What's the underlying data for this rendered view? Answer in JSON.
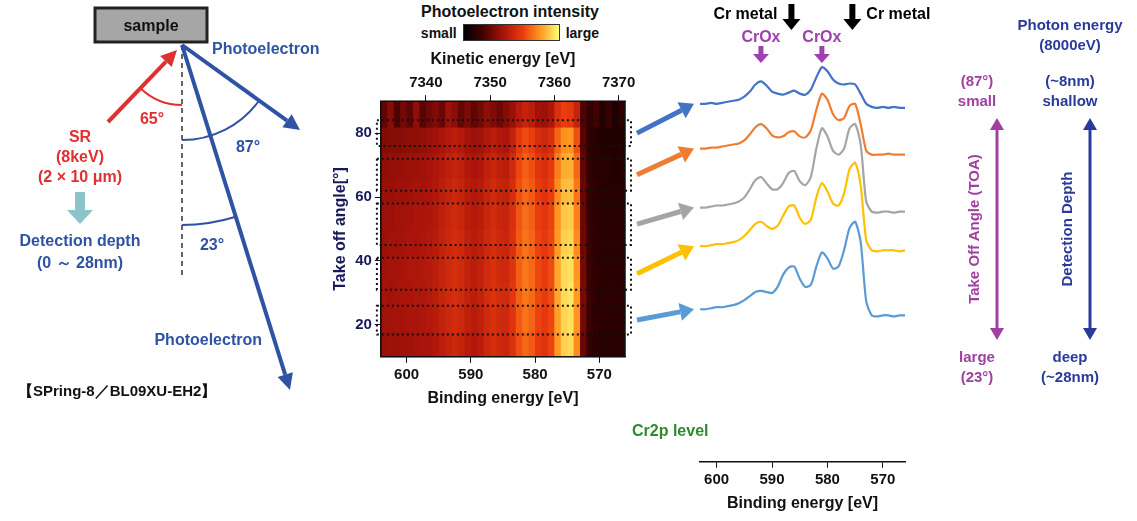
{
  "diagram": {
    "sample": "sample",
    "beam": [
      "SR",
      "(8keV)",
      "(2 × 10 μm)"
    ],
    "incidence_angle": "65°",
    "photoelectron": "Photoelectron",
    "emission_angles": [
      "87°",
      "23°"
    ],
    "detection_depth": [
      "Detection depth",
      "(0 ～ 28nm)"
    ],
    "facility": "【SPring-8／BL09XU-EH2】"
  },
  "chart_data": [
    {
      "type": "heatmap",
      "colorbar_title": "Photoelectron intensity",
      "colorbar_labels": [
        "small",
        "large"
      ],
      "color_range": [
        0,
        10
      ],
      "x_label": "Binding energy [eV]",
      "xlim": [
        604,
        566
      ],
      "xticks": [
        600,
        590,
        580,
        570
      ],
      "x2_label": "Kinetic energy [eV]",
      "x2lim": [
        7333,
        7371
      ],
      "x2ticks": [
        7340,
        7350,
        7360,
        7370
      ],
      "y_label": "Take off angle[°]",
      "ylim": [
        10,
        90
      ],
      "yticks": [
        20,
        40,
        60,
        80
      ],
      "grid": false,
      "x_edges": [
        604,
        603,
        602,
        601,
        600,
        599,
        598,
        597,
        596,
        595,
        594,
        593,
        592,
        591,
        590,
        589,
        588,
        587,
        586,
        585,
        584,
        583,
        582,
        581,
        580,
        579,
        578,
        577,
        576,
        575,
        574,
        573,
        572,
        571,
        570,
        569,
        568,
        567,
        566
      ],
      "y_edges": [
        10,
        18,
        26,
        34,
        42,
        50,
        58,
        66,
        74,
        82,
        90
      ],
      "cells": [
        [
          3.8,
          3.9,
          3.9,
          4.0,
          4.0,
          4.1,
          4.2,
          4.2,
          4.4,
          4.7,
          5.0,
          5.2,
          5.0,
          4.6,
          4.4,
          4.7,
          5.2,
          5.5,
          5.2,
          5.1,
          5.7,
          6.6,
          7.1,
          6.8,
          6.1,
          5.8,
          6.3,
          8.1,
          9.1,
          9.3,
          7.8,
          2.8,
          1.5,
          1.2,
          1.1,
          1.1,
          1.1,
          1.1
        ],
        [
          4.0,
          4.0,
          4.1,
          4.1,
          4.2,
          4.2,
          4.3,
          4.4,
          4.6,
          4.9,
          5.2,
          5.4,
          5.2,
          4.8,
          4.6,
          4.8,
          5.3,
          5.6,
          5.3,
          5.2,
          5.8,
          6.8,
          7.3,
          7.0,
          6.3,
          6.0,
          6.4,
          8.2,
          9.2,
          9.4,
          8.0,
          3.0,
          1.6,
          1.3,
          1.2,
          1.2,
          1.2,
          1.2
        ],
        [
          4.1,
          4.0,
          4.1,
          4.2,
          4.2,
          4.3,
          4.3,
          4.5,
          4.7,
          5.0,
          5.3,
          5.5,
          5.3,
          4.9,
          4.7,
          4.9,
          5.4,
          5.7,
          5.4,
          5.3,
          5.9,
          6.9,
          7.4,
          7.1,
          6.4,
          6.1,
          6.5,
          8.3,
          9.3,
          9.5,
          8.1,
          3.1,
          1.7,
          1.3,
          1.2,
          1.3,
          1.2,
          1.2
        ],
        [
          4.0,
          4.1,
          4.1,
          4.2,
          4.3,
          4.3,
          4.4,
          4.5,
          4.7,
          5.0,
          5.3,
          5.5,
          5.3,
          4.9,
          4.7,
          4.9,
          5.3,
          5.6,
          5.3,
          5.2,
          5.8,
          6.9,
          7.4,
          7.1,
          6.4,
          6.1,
          6.5,
          8.3,
          9.3,
          9.4,
          8.0,
          3.0,
          1.6,
          1.3,
          1.2,
          1.2,
          1.2,
          1.2
        ],
        [
          3.9,
          4.0,
          4.0,
          4.1,
          4.2,
          4.2,
          4.3,
          4.4,
          4.6,
          4.9,
          5.2,
          5.4,
          5.2,
          4.8,
          4.6,
          4.8,
          5.2,
          5.5,
          5.2,
          5.1,
          5.7,
          6.8,
          7.3,
          7.0,
          6.3,
          6.0,
          6.4,
          8.1,
          9.1,
          9.2,
          7.8,
          2.9,
          1.6,
          1.3,
          1.2,
          1.2,
          1.2,
          1.2
        ],
        [
          3.9,
          3.9,
          4.0,
          4.0,
          4.1,
          4.2,
          4.2,
          4.3,
          4.5,
          4.8,
          5.1,
          5.3,
          5.1,
          4.7,
          4.5,
          4.7,
          5.1,
          5.4,
          5.1,
          5.0,
          5.6,
          6.7,
          7.2,
          6.9,
          6.2,
          5.9,
          6.3,
          8.0,
          8.9,
          9.0,
          7.6,
          2.8,
          1.5,
          1.2,
          1.2,
          1.1,
          1.2,
          1.1
        ],
        [
          3.8,
          3.8,
          3.9,
          3.9,
          4.0,
          4.1,
          4.1,
          4.2,
          4.4,
          4.7,
          5.0,
          5.2,
          5.0,
          4.6,
          4.4,
          4.6,
          5.0,
          5.3,
          5.0,
          4.9,
          5.5,
          6.6,
          7.1,
          6.8,
          6.1,
          5.8,
          6.2,
          7.8,
          8.7,
          8.8,
          7.4,
          2.7,
          1.5,
          1.2,
          1.1,
          1.1,
          1.1,
          1.1
        ],
        [
          3.6,
          3.7,
          3.7,
          3.8,
          3.9,
          3.9,
          4.0,
          4.1,
          4.3,
          4.5,
          4.8,
          5.0,
          4.8,
          4.4,
          4.2,
          4.4,
          4.8,
          5.1,
          4.8,
          4.7,
          5.3,
          6.4,
          6.9,
          6.6,
          5.9,
          5.6,
          6.0,
          7.5,
          8.4,
          8.5,
          7.1,
          2.6,
          1.4,
          1.1,
          1.1,
          1.1,
          1.0,
          1.1
        ],
        [
          3.3,
          3.4,
          3.4,
          3.5,
          3.6,
          3.6,
          3.7,
          3.8,
          4.0,
          4.2,
          4.5,
          4.7,
          4.5,
          4.1,
          3.9,
          4.0,
          4.4,
          4.7,
          4.4,
          4.3,
          4.9,
          6.0,
          6.5,
          6.2,
          5.5,
          5.2,
          5.6,
          7.0,
          7.9,
          8.0,
          6.6,
          2.4,
          1.3,
          1.1,
          1.0,
          1.0,
          1.0,
          1.0
        ],
        [
          2.6,
          3.4,
          2.2,
          3.0,
          2.5,
          3.6,
          2.4,
          2.9,
          3.3,
          2.8,
          3.9,
          3.5,
          2.7,
          3.2,
          2.6,
          3.0,
          3.6,
          3.3,
          2.9,
          3.4,
          3.8,
          4.6,
          5.0,
          4.7,
          4.0,
          3.9,
          4.3,
          5.6,
          6.2,
          6.0,
          5.0,
          2.2,
          1.4,
          1.9,
          1.0,
          1.6,
          0.9,
          1.3
        ]
      ],
      "angle_windows": [
        [
          76,
          84
        ],
        [
          62,
          72
        ],
        [
          45,
          58
        ],
        [
          31,
          41
        ],
        [
          17,
          26
        ]
      ]
    },
    {
      "type": "line",
      "title": "Cr2p level",
      "x_label": "Binding energy [eV]",
      "xlim": [
        603,
        566
      ],
      "xticks": [
        600,
        590,
        580,
        570
      ],
      "ylim": [
        0,
        20
      ],
      "tick_labels": "x",
      "grid": false,
      "x": [
        603,
        602,
        601,
        600,
        599,
        598,
        597,
        596,
        595,
        594,
        593,
        592,
        591,
        590,
        589,
        588,
        587,
        586,
        585,
        584,
        583,
        582,
        581,
        580,
        579,
        578,
        577,
        576,
        575,
        574,
        573,
        572,
        571,
        570,
        569,
        568,
        567,
        566
      ],
      "series": [
        {
          "color": "#4472c4",
          "values": [
            17.6,
            17.6,
            17.65,
            17.6,
            17.65,
            17.7,
            17.75,
            17.8,
            17.95,
            18.2,
            18.55,
            18.7,
            18.5,
            18.2,
            18.1,
            18.05,
            18.15,
            18.25,
            18.1,
            18.05,
            18.3,
            18.9,
            19.4,
            19.2,
            18.8,
            18.6,
            18.55,
            18.6,
            18.55,
            18.1,
            17.6,
            17.45,
            17.4,
            17.45,
            17.4,
            17.45,
            17.4,
            17.4
          ]
        },
        {
          "color": "#ed7d31",
          "values": [
            15.4,
            15.4,
            15.45,
            15.45,
            15.5,
            15.55,
            15.6,
            15.65,
            15.8,
            16.1,
            16.45,
            16.6,
            16.4,
            16.05,
            15.95,
            16.0,
            16.2,
            16.25,
            16.0,
            15.95,
            16.3,
            17.3,
            18.1,
            17.8,
            17.1,
            16.8,
            16.9,
            17.5,
            17.6,
            16.6,
            15.3,
            15.1,
            15.1,
            15.1,
            15.15,
            15.1,
            15.1,
            15.1
          ]
        },
        {
          "color": "#a5a5a5",
          "values": [
            12.5,
            12.5,
            12.55,
            12.6,
            12.6,
            12.65,
            12.7,
            12.8,
            13.0,
            13.4,
            13.85,
            14.0,
            13.7,
            13.4,
            13.4,
            13.7,
            14.2,
            14.3,
            13.8,
            13.6,
            14.0,
            15.4,
            16.4,
            16.0,
            15.3,
            15.1,
            15.4,
            16.4,
            16.6,
            15.6,
            12.8,
            12.3,
            12.25,
            12.3,
            12.3,
            12.25,
            12.3,
            12.3
          ]
        },
        {
          "color": "#ffc000",
          "values": [
            10.6,
            10.6,
            10.65,
            10.7,
            10.7,
            10.75,
            10.8,
            10.9,
            11.1,
            11.4,
            11.7,
            11.8,
            11.6,
            11.45,
            11.6,
            12.1,
            12.55,
            12.6,
            12.0,
            11.7,
            11.9,
            13.0,
            13.7,
            13.3,
            12.7,
            12.6,
            13.2,
            14.4,
            14.7,
            13.6,
            10.9,
            10.4,
            10.35,
            10.4,
            10.4,
            10.4,
            10.35,
            10.4
          ]
        },
        {
          "color": "#5b9bd5",
          "values": [
            7.5,
            7.5,
            7.55,
            7.6,
            7.6,
            7.65,
            7.7,
            7.8,
            7.95,
            8.15,
            8.35,
            8.4,
            8.35,
            8.3,
            8.6,
            9.2,
            9.55,
            9.6,
            9.0,
            8.6,
            8.7,
            9.6,
            10.3,
            10.0,
            9.5,
            9.6,
            10.4,
            11.5,
            11.8,
            10.8,
            7.9,
            7.2,
            7.15,
            7.2,
            7.2,
            7.15,
            7.2,
            7.2
          ]
        }
      ],
      "annotations": [
        {
          "text": "Cr metal",
          "x": [
            586.5,
            575.5
          ],
          "color": "#000000"
        },
        {
          "text": "CrOx",
          "x": [
            592,
            581
          ],
          "color": "#a040b0"
        }
      ]
    }
  ],
  "depth_scale": {
    "photon_energy": [
      "Photon energy",
      "(8000eV)"
    ],
    "take_off_angle": {
      "label": "Take Off Angle (TOA)",
      "top": [
        "(87°)",
        "small"
      ],
      "bottom": [
        "large",
        "(23°)"
      ]
    },
    "detection_depth": {
      "label": "Detection Depth",
      "top": [
        "(~8nm)",
        "shallow"
      ],
      "bottom": [
        "deep",
        "(~28nm)"
      ]
    }
  }
}
